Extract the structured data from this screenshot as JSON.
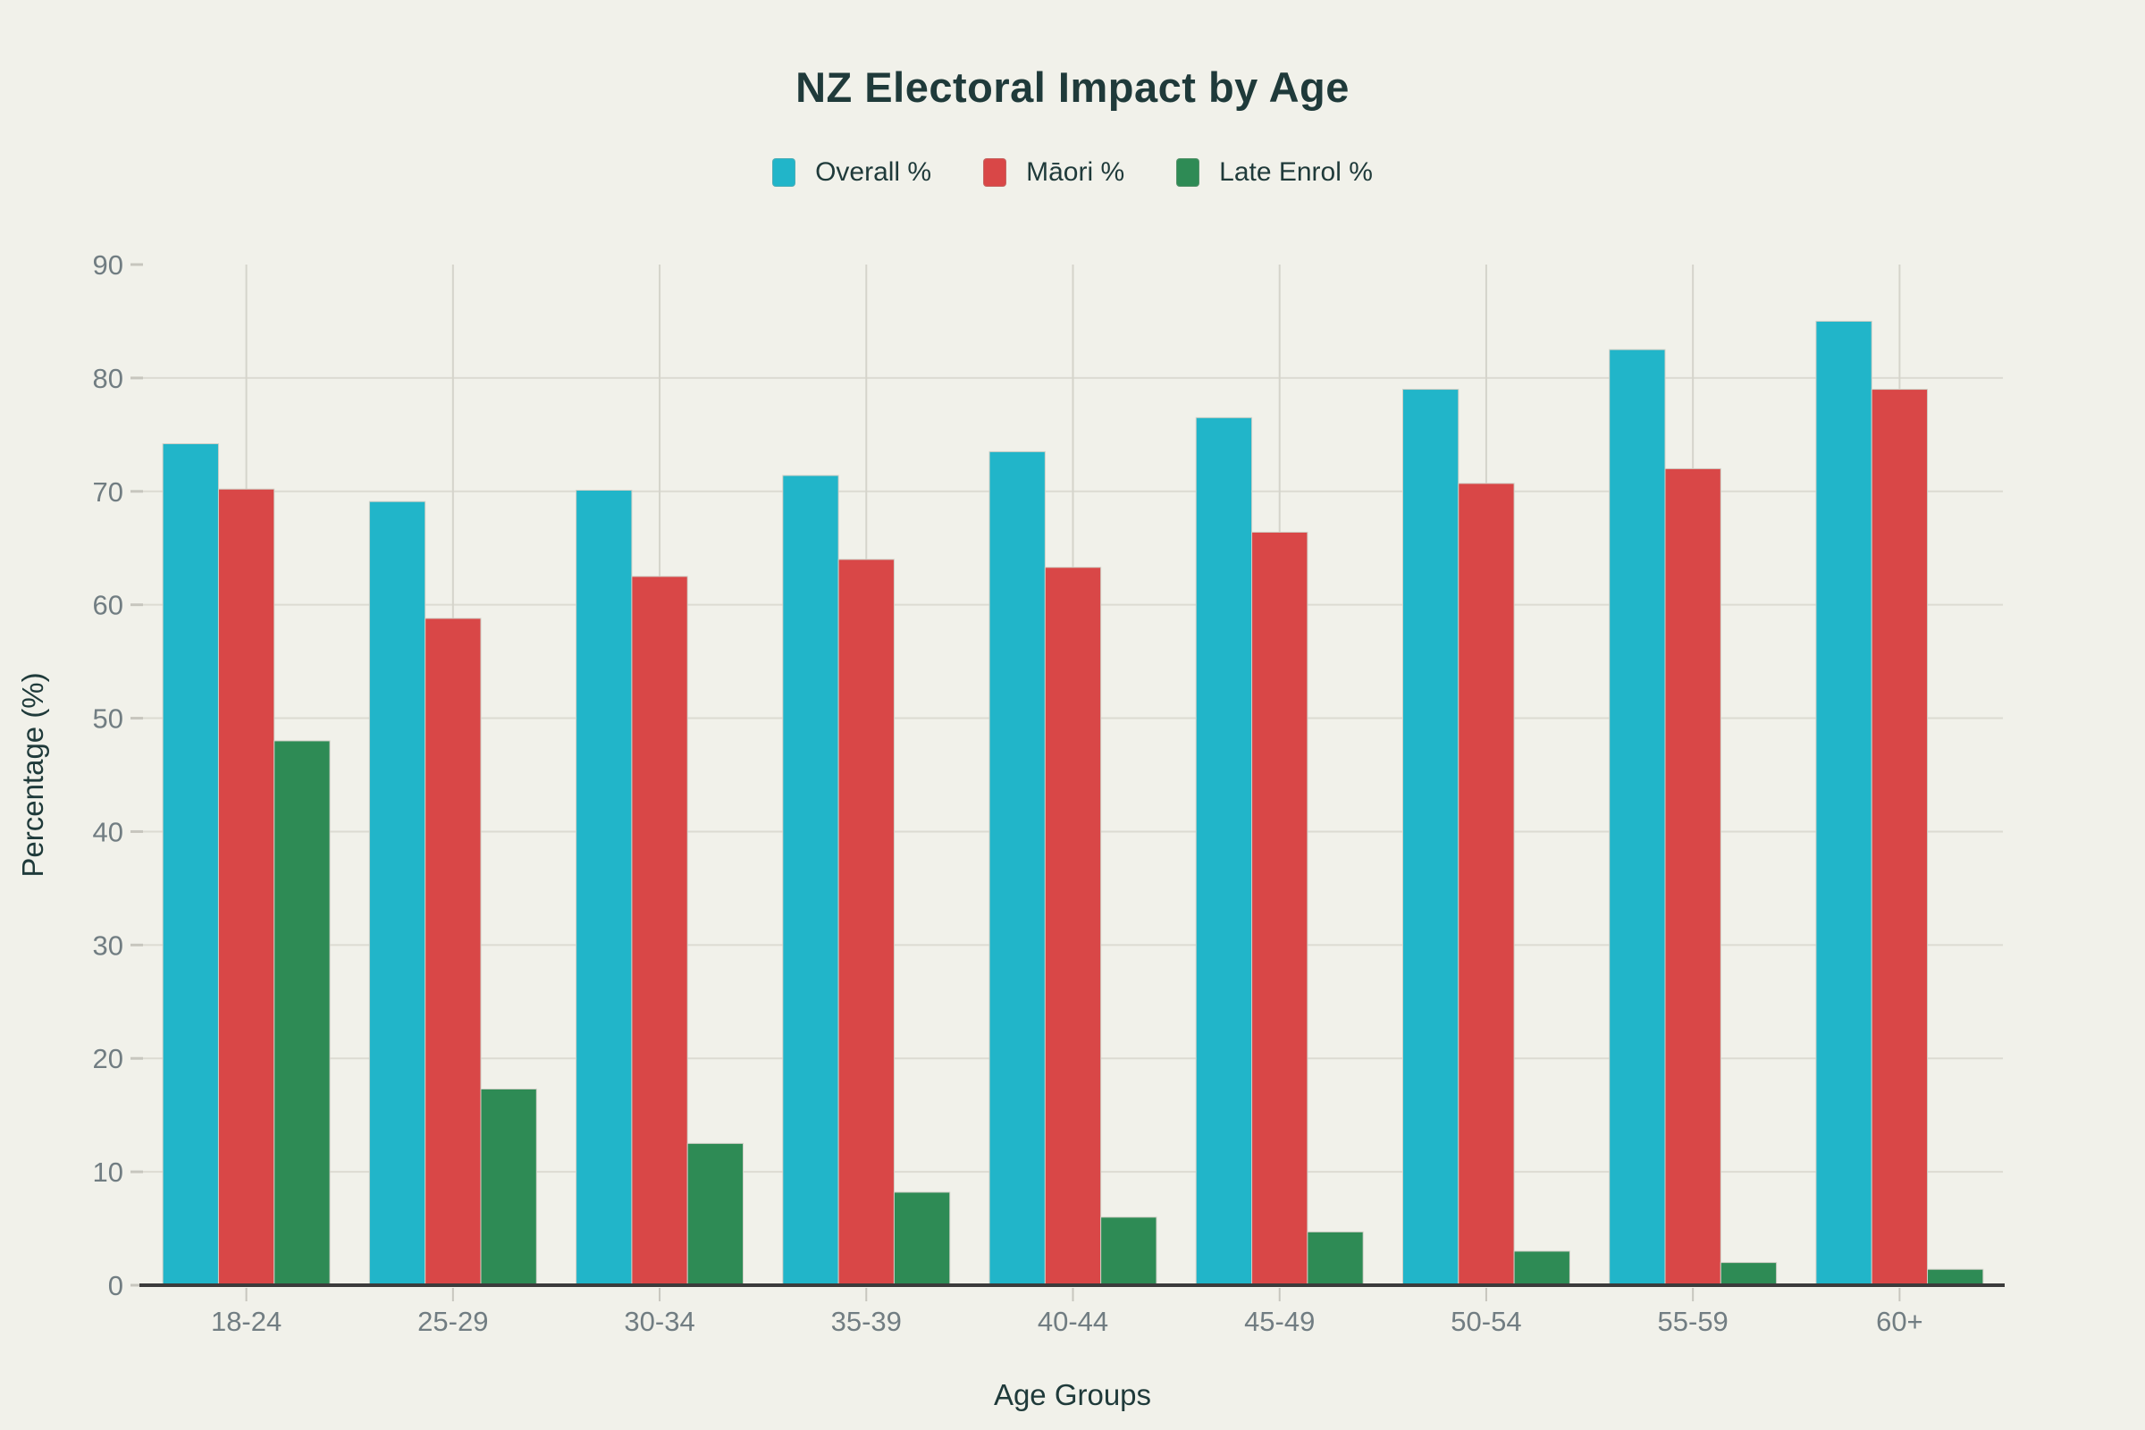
{
  "page": {
    "background_color": "#f1f1ea"
  },
  "chart_data": {
    "type": "bar",
    "title": "NZ Electoral Impact by Age",
    "xlabel": "Age Groups",
    "ylabel": "Percentage (%)",
    "categories": [
      "18-24",
      "25-29",
      "30-34",
      "35-39",
      "40-44",
      "45-49",
      "50-54",
      "55-59",
      "60+"
    ],
    "series": [
      {
        "name": "Overall %",
        "slug": "overall",
        "color": "#21b5c9",
        "values": [
          74.2,
          69.1,
          70.1,
          71.4,
          73.5,
          76.5,
          79.0,
          82.5,
          85.0
        ]
      },
      {
        "name": "Māori %",
        "slug": "maori",
        "color": "#d94747",
        "values": [
          70.2,
          58.8,
          62.5,
          64.0,
          63.3,
          66.4,
          70.7,
          72.0,
          79.0
        ]
      },
      {
        "name": "Late Enrol %",
        "slug": "late-enrol",
        "color": "#2e8b55",
        "values": [
          48.0,
          17.3,
          12.5,
          8.2,
          6.0,
          4.7,
          3.0,
          2.0,
          1.4
        ]
      }
    ],
    "ylim": [
      0,
      90
    ],
    "yticks": [
      0,
      10,
      20,
      30,
      40,
      50,
      60,
      70,
      80,
      90
    ],
    "grid": true,
    "legend_position": "top",
    "colors": {
      "title_text": "#1f3a3a",
      "axis_tick_text": "#717d82",
      "axis_title_text": "#1f3a3a",
      "grid_line_horizontal": "#dcdbd2",
      "grid_line_vertical": "#d5d4cb",
      "tick_mark": "#c7c6be",
      "axis_line": "#3b3b3b",
      "bar_border": "#cfcfc6"
    }
  }
}
